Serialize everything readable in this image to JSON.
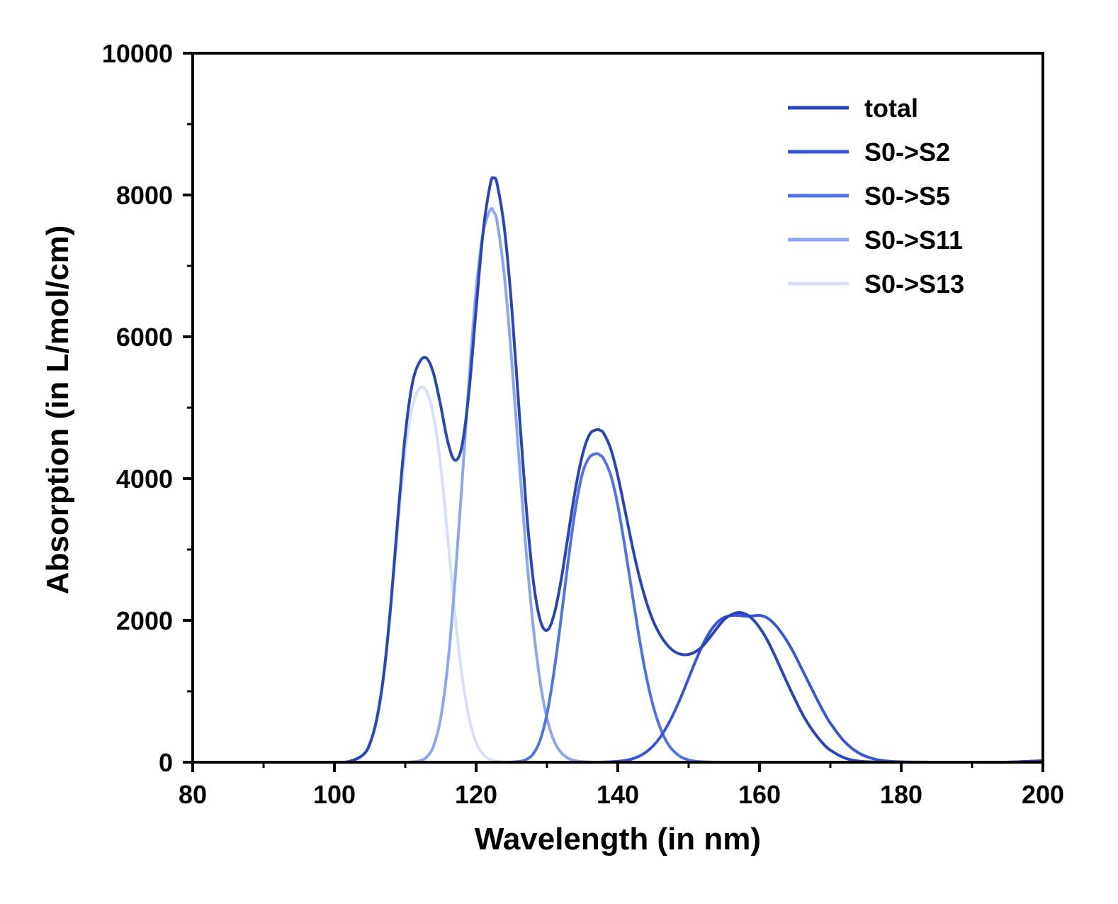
{
  "chart_data": {
    "type": "line",
    "title": "",
    "xlabel": "Wavelength (in nm)",
    "ylabel": "Absorption (in L/mol/cm)",
    "xlim": [
      80,
      200
    ],
    "ylim": [
      0,
      10000
    ],
    "x_ticks": [
      "80",
      "100",
      "120",
      "140",
      "160",
      "180",
      "200"
    ],
    "y_ticks": [
      "0",
      "2000",
      "4000",
      "6000",
      "8000",
      "10000"
    ],
    "legend_position": "top-right",
    "grid": false,
    "x": [
      100,
      102,
      104,
      105,
      106,
      107,
      108,
      109,
      110,
      111,
      112,
      113,
      114,
      115,
      116,
      117,
      118,
      119,
      120,
      121,
      122,
      122.5,
      123,
      124,
      125,
      126,
      127,
      128,
      129,
      130,
      131,
      132,
      133,
      134,
      135,
      136,
      137,
      137.5,
      138,
      139,
      140,
      141,
      142,
      143,
      144,
      145,
      146,
      147,
      148,
      149,
      150,
      151,
      152,
      153,
      154,
      155,
      156,
      157,
      158,
      159,
      160,
      161,
      162,
      163,
      164,
      165,
      166,
      167,
      168,
      169,
      170,
      172,
      174,
      176,
      178,
      180,
      185,
      190,
      195,
      200
    ],
    "series": [
      {
        "name": "total",
        "color": "#2b45b8",
        "values": [
          0,
          8,
          100,
          260,
          620,
          1270,
          2270,
          3500,
          4620,
          5340,
          5640,
          5700,
          5480,
          5030,
          4520,
          4260,
          4460,
          5230,
          6390,
          7490,
          8150,
          8240,
          8140,
          7520,
          6450,
          5060,
          3690,
          2620,
          2020,
          1860,
          2080,
          2570,
          3210,
          3840,
          4330,
          4620,
          4690,
          4680,
          4640,
          4420,
          4040,
          3560,
          3070,
          2630,
          2270,
          1990,
          1790,
          1650,
          1560,
          1520,
          1520,
          1560,
          1640,
          1760,
          1890,
          2010,
          2080,
          2110,
          2090,
          2020,
          1900,
          1740,
          1540,
          1320,
          1100,
          890,
          690,
          520,
          380,
          260,
          170,
          60,
          15,
          4,
          1,
          0,
          0,
          0,
          0,
          20
        ]
      },
      {
        "name": "S0->S2",
        "color": "#3a56d6",
        "values": [
          0,
          0,
          0,
          0,
          0,
          0,
          0,
          0,
          0,
          0,
          0,
          0,
          0,
          0,
          0,
          0,
          0,
          0,
          0,
          0,
          0,
          0,
          0,
          0,
          0,
          0,
          0,
          0,
          0,
          0,
          0,
          0,
          0,
          0,
          0,
          0,
          0,
          0,
          2,
          5,
          12,
          24,
          46,
          84,
          143,
          231,
          354,
          515,
          712,
          939,
          1185,
          1432,
          1658,
          1839,
          1968,
          2041,
          2068,
          2070,
          2060,
          2062,
          2070,
          2040,
          1960,
          1840,
          1690,
          1510,
          1310,
          1110,
          910,
          720,
          550,
          290,
          130,
          50,
          16,
          5,
          0,
          0,
          0,
          20
        ]
      },
      {
        "name": "S0->S5",
        "color": "#5173e6",
        "values": [
          0,
          0,
          0,
          0,
          0,
          0,
          0,
          0,
          0,
          0,
          0,
          0,
          0,
          0,
          0,
          0,
          0,
          0,
          0,
          0,
          0,
          0,
          0,
          0,
          2,
          9,
          34,
          110,
          300,
          680,
          1280,
          2030,
          2840,
          3560,
          4070,
          4300,
          4350,
          4330,
          4280,
          4050,
          3620,
          3040,
          2400,
          1770,
          1220,
          790,
          480,
          270,
          145,
          70,
          32,
          13,
          5,
          2,
          0,
          0,
          0,
          0,
          0,
          0,
          0,
          0,
          0,
          0,
          0,
          0,
          0,
          0,
          0,
          0,
          0,
          0,
          0,
          0,
          0,
          0,
          0,
          0,
          0,
          0
        ]
      },
      {
        "name": "S0->S11",
        "color": "#8ea6f2",
        "values": [
          0,
          0,
          0,
          0,
          0,
          0,
          0,
          0,
          0,
          4,
          18,
          70,
          230,
          620,
          1380,
          2530,
          3920,
          5390,
          6660,
          7470,
          7790,
          7760,
          7600,
          6850,
          5690,
          4350,
          3050,
          1970,
          1160,
          620,
          300,
          135,
          55,
          20,
          7,
          2,
          0,
          0,
          0,
          0,
          0,
          0,
          0,
          0,
          0,
          0,
          0,
          0,
          0,
          0,
          0,
          0,
          0,
          0,
          0,
          0,
          0,
          0,
          0,
          0,
          0,
          0,
          0,
          0,
          0,
          0,
          0,
          0,
          0,
          0,
          0,
          0,
          0,
          0,
          0,
          0,
          0,
          0,
          0,
          0
        ]
      },
      {
        "name": "S0->S13",
        "color": "#d6e0fb",
        "values": [
          0,
          6,
          95,
          250,
          590,
          1220,
          2180,
          3340,
          4380,
          5010,
          5270,
          5230,
          4880,
          4180,
          3170,
          2110,
          1230,
          630,
          280,
          110,
          38,
          20,
          11,
          3,
          0,
          0,
          0,
          0,
          0,
          0,
          0,
          0,
          0,
          0,
          0,
          0,
          0,
          0,
          0,
          0,
          0,
          0,
          0,
          0,
          0,
          0,
          0,
          0,
          0,
          0,
          0,
          0,
          0,
          0,
          0,
          0,
          0,
          0,
          0,
          0,
          0,
          0,
          0,
          0,
          0,
          0,
          0,
          0,
          0,
          0,
          0,
          0,
          0,
          0,
          0,
          0,
          0,
          0,
          0,
          0
        ]
      }
    ]
  }
}
